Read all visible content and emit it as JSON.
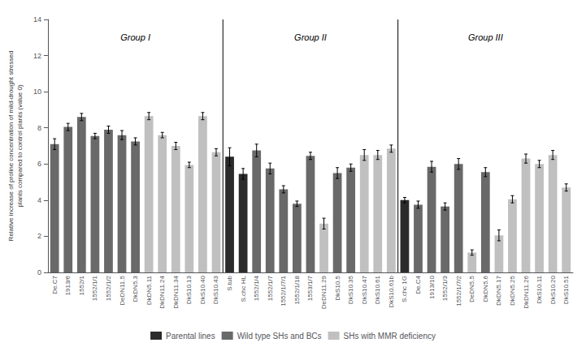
{
  "chart_data": {
    "type": "bar",
    "ylabel": "Relative increase of proline concentration of mild-drought stressed\nplants compared to control plants (value 0)",
    "categories": [
      "De.C7",
      "1913/6",
      "1552/1",
      "1552/1/1",
      "1552/1/2",
      "DeDN11.5",
      "DkDN5.3",
      "DkDN5.11",
      "DkDN11.24",
      "DkDN11.34",
      "DkS10.13",
      "DkS10.40",
      "DkS10.43",
      "S.tub",
      "S.chc HL",
      "1552/1/4",
      "1552/1/7",
      "1552/1/7/1",
      "1552/1/18",
      "1553/1/7",
      "DeDN11.29",
      "DkS10.5",
      "DkS10.35",
      "DkS10.47",
      "DkS10.61",
      "DkS10.61b",
      "S.chc 1G",
      "De.C4",
      "1913/10",
      "1552/1/3",
      "1552/1/7/2",
      "DeDN5.5",
      "DkDN5.6",
      "DkDN5.17",
      "DkDN5.25",
      "DkDN11.26",
      "DkS10.11",
      "DkS10.20",
      "DkS10.51"
    ],
    "groups": [
      {
        "name": "Group I",
        "categories": [
          "De.C7",
          "1913/6",
          "1552/1",
          "1552/1/1",
          "1552/1/2",
          "DeDN11.5",
          "DkDN5.3",
          "DkDN5.11",
          "DkDN11.24",
          "DkDN11.34",
          "DkS10.13",
          "DkS10.40",
          "DkS10.43"
        ]
      },
      {
        "name": "Group II",
        "categories": [
          "S.tub",
          "S.chc HL",
          "1552/1/4",
          "1552/1/7",
          "1552/1/7/1",
          "1552/1/18",
          "1553/1/7",
          "DeDN11.29",
          "DkS10.5",
          "DkS10.35",
          "DkS10.47",
          "DkS10.61",
          "DkS10.61b"
        ]
      },
      {
        "name": "Group III",
        "categories": [
          "S.chc 1G",
          "De.C4",
          "1913/10",
          "1552/1/3",
          "1552/1/7/2",
          "DeDN5.5",
          "DkDN5.6",
          "DkDN5.17",
          "DkDN5.25",
          "DkDN11.26",
          "DkS10.11",
          "DkS10.20",
          "DkS10.51"
        ]
      }
    ],
    "series": [
      {
        "name": "Parental lines",
        "color": "#2b2b2b",
        "values": [
          null,
          null,
          null,
          null,
          null,
          null,
          null,
          null,
          null,
          null,
          null,
          null,
          null,
          6.4,
          5.45,
          null,
          null,
          null,
          null,
          null,
          null,
          null,
          null,
          null,
          null,
          null,
          4.0,
          null,
          null,
          null,
          null,
          null,
          null,
          null,
          null,
          null,
          null,
          null,
          null
        ],
        "errors": [
          null,
          null,
          null,
          null,
          null,
          null,
          null,
          null,
          null,
          null,
          null,
          null,
          null,
          0.5,
          0.3,
          null,
          null,
          null,
          null,
          null,
          null,
          null,
          null,
          null,
          null,
          null,
          0.15,
          null,
          null,
          null,
          null,
          null,
          null,
          null,
          null,
          null,
          null,
          null,
          null
        ]
      },
      {
        "name": "Wild type SHs and BCs",
        "color": "#696969",
        "values": [
          7.1,
          8.05,
          8.6,
          7.55,
          7.9,
          7.6,
          7.25,
          null,
          null,
          null,
          null,
          null,
          null,
          null,
          null,
          6.75,
          5.75,
          4.6,
          3.8,
          6.45,
          null,
          5.5,
          5.8,
          null,
          null,
          null,
          null,
          3.75,
          5.85,
          3.65,
          6.0,
          null,
          5.55,
          null,
          null,
          null,
          null,
          null,
          null
        ],
        "errors": [
          0.3,
          0.2,
          0.2,
          0.15,
          0.2,
          0.25,
          0.2,
          null,
          null,
          null,
          null,
          null,
          null,
          null,
          null,
          0.35,
          0.3,
          0.2,
          0.15,
          0.2,
          null,
          0.3,
          0.2,
          null,
          null,
          null,
          null,
          0.2,
          0.3,
          0.2,
          0.3,
          null,
          0.25,
          null,
          null,
          null,
          null,
          null,
          null
        ]
      },
      {
        "name": "SHs with MMR deficiency",
        "color": "#c0c0c0",
        "values": [
          null,
          null,
          null,
          null,
          null,
          null,
          null,
          8.65,
          7.6,
          7.0,
          5.95,
          8.65,
          6.65,
          null,
          null,
          null,
          null,
          null,
          null,
          null,
          2.7,
          null,
          null,
          6.5,
          6.5,
          6.85,
          null,
          null,
          null,
          null,
          null,
          1.1,
          null,
          2.05,
          4.05,
          6.3,
          6.0,
          6.5,
          4.7
        ],
        "errors": [
          null,
          null,
          null,
          null,
          null,
          null,
          null,
          0.2,
          0.15,
          0.2,
          0.15,
          0.2,
          0.2,
          null,
          null,
          null,
          null,
          null,
          null,
          null,
          0.3,
          null,
          null,
          0.3,
          0.25,
          0.2,
          null,
          null,
          null,
          null,
          null,
          0.15,
          null,
          0.3,
          0.2,
          0.25,
          0.2,
          0.25,
          0.2
        ]
      }
    ],
    "ylim": [
      0,
      14
    ],
    "yticks": [
      0,
      2,
      4,
      6,
      8,
      10,
      12,
      14
    ],
    "grid": false,
    "legend": "bottom"
  }
}
